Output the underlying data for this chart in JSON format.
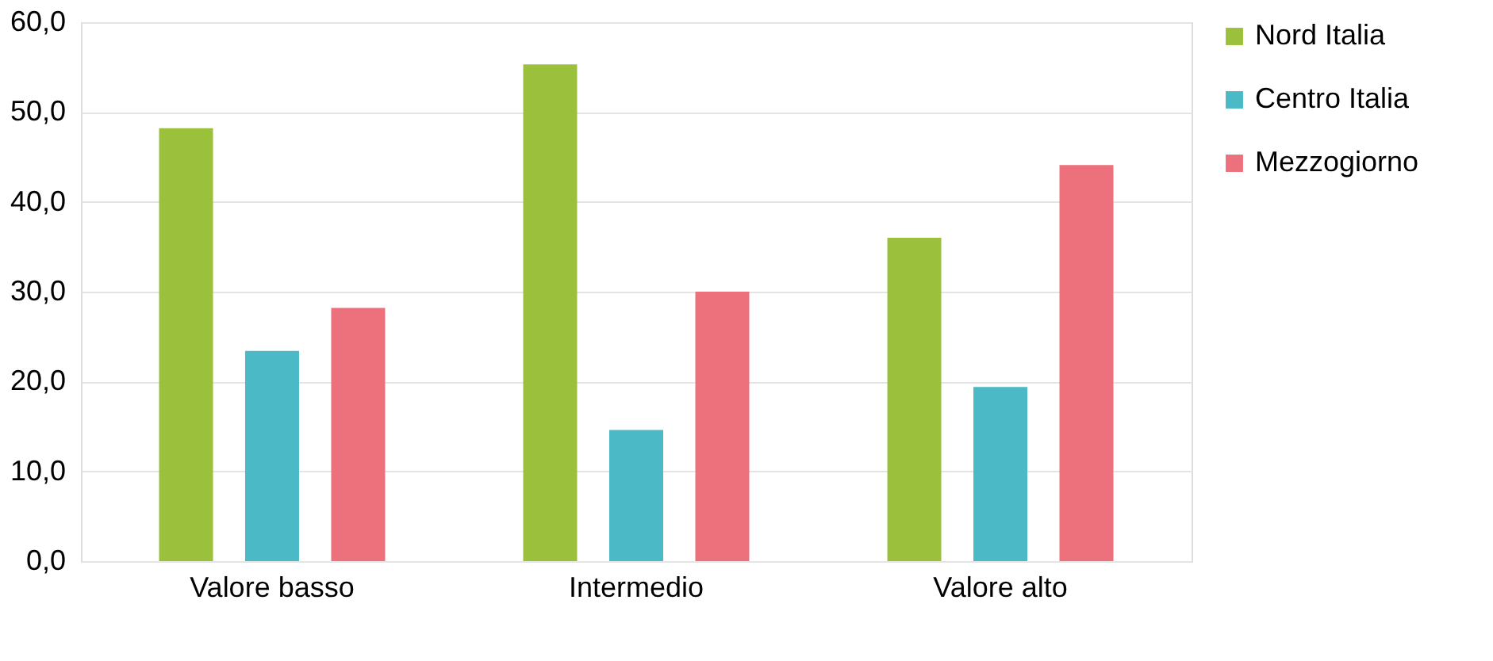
{
  "chart_data": {
    "type": "bar",
    "categories": [
      "Valore basso",
      "Intermedio",
      "Valore alto"
    ],
    "series": [
      {
        "name": "Nord Italia",
        "color": "#9bc13c",
        "values": [
          48.2,
          55.3,
          36.0
        ]
      },
      {
        "name": "Centro Italia",
        "color": "#4bbac6",
        "values": [
          23.4,
          14.6,
          19.4
        ]
      },
      {
        "name": "Mezzogiorno",
        "color": "#ec717c",
        "values": [
          28.2,
          30.0,
          44.1
        ]
      }
    ],
    "ylim": [
      0,
      60
    ],
    "yticks": [
      {
        "value": 0,
        "label": "0,0"
      },
      {
        "value": 10,
        "label": "10,0"
      },
      {
        "value": 20,
        "label": "20,0"
      },
      {
        "value": 30,
        "label": "30,0"
      },
      {
        "value": 40,
        "label": "40,0"
      },
      {
        "value": 50,
        "label": "50,0"
      },
      {
        "value": 60,
        "label": "60,0"
      }
    ],
    "grid": "y",
    "legend": "right"
  }
}
